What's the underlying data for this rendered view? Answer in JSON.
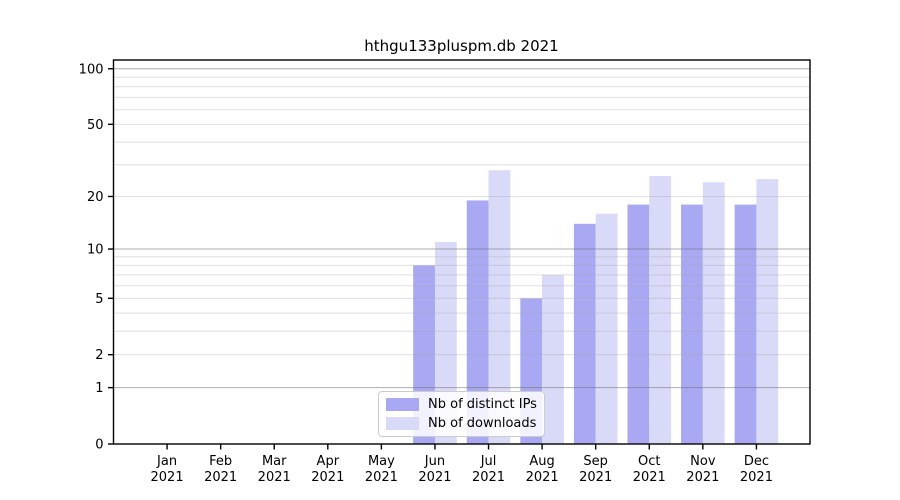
{
  "chart_data": {
    "type": "bar",
    "title": "hthgu133pluspm.db 2021",
    "categories": [
      "Jan",
      "Feb",
      "Mar",
      "Apr",
      "May",
      "Jun",
      "Jul",
      "Aug",
      "Sep",
      "Oct",
      "Nov",
      "Dec"
    ],
    "category_year": "2021",
    "series": [
      {
        "name": "Nb of distinct IPs",
        "color": "#a8a8f3",
        "values": [
          0,
          0,
          0,
          0,
          0,
          8,
          19,
          5,
          14,
          18,
          18,
          18
        ]
      },
      {
        "name": "Nb of downloads",
        "color": "#d9d9f8",
        "values": [
          0,
          0,
          0,
          0,
          0,
          11,
          28,
          7,
          16,
          26,
          24,
          25
        ]
      }
    ],
    "yscale": "log1p",
    "ylim": [
      0,
      111.5
    ],
    "ytick_labels": [
      100,
      50,
      20,
      10,
      5,
      2,
      1,
      0
    ],
    "major_gridlines": [
      1,
      10,
      100
    ],
    "minor_gridlines": [
      2,
      3,
      4,
      5,
      6,
      7,
      8,
      9,
      20,
      30,
      40,
      50,
      60,
      70,
      80,
      90
    ],
    "legend_position": "lower center",
    "grid": true
  },
  "style": {
    "spine_color": "#000000",
    "major_grid_rgba": "rgba(110,110,110,0.55)",
    "minor_grid_rgba": "rgba(170,170,170,0.38)",
    "tick_text_color": "#000000"
  }
}
